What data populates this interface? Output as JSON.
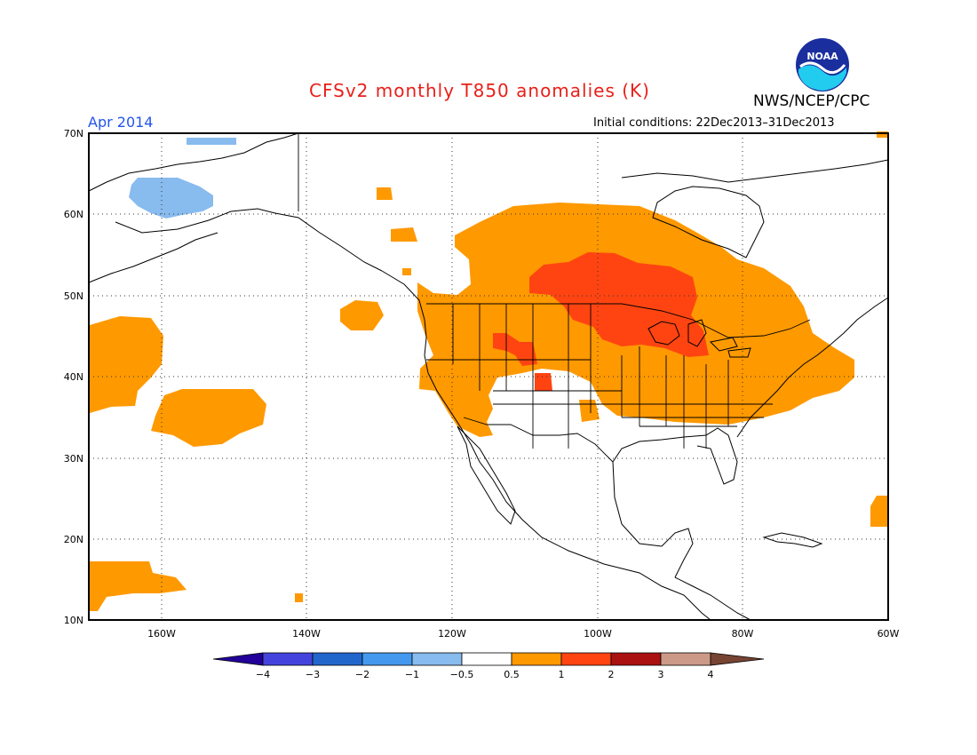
{
  "title": "CFSv2 monthly T850 anomalies (K)",
  "agency": "NWS/NCEP/CPC",
  "logo_text": "NOAA",
  "month_label": "Apr 2014",
  "initial_conditions": "Initial conditions: 22Dec2013–31Dec2013",
  "lat_labels": [
    "70N",
    "60N",
    "50N",
    "40N",
    "30N",
    "20N",
    "10N"
  ],
  "lon_labels": [
    "160W",
    "140W",
    "120W",
    "100W",
    "80W",
    "60W"
  ],
  "colorbar": {
    "tick_labels": [
      "−4",
      "−3",
      "−2",
      "−1",
      "−0.5",
      "0.5",
      "1",
      "2",
      "3",
      "4"
    ],
    "colors": [
      "#220099",
      "#4444dd",
      "#2266cc",
      "#4499ee",
      "#88bbee",
      "#ffffff",
      "#ff9900",
      "#ff4411",
      "#aa1111",
      "#cc9988",
      "#774433"
    ]
  },
  "legend_colors": {
    "warm_05_1": "#ff9900",
    "warm_1_2": "#ff4411",
    "cool_neg1_neg05": "#88bbee"
  }
}
